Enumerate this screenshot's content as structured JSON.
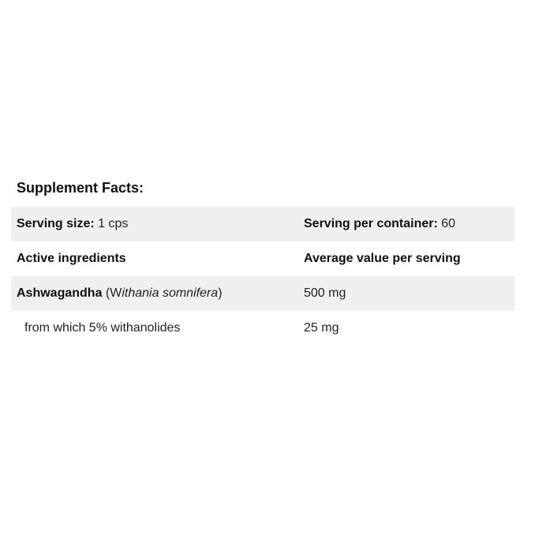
{
  "title": "Supplement Facts:",
  "serving": {
    "size_label": "Serving size:",
    "size_value": "1 cps",
    "container_label": "Serving per container:",
    "container_value": "60"
  },
  "header": {
    "col1": "Active ingredients",
    "col2": "Average value per serving"
  },
  "ingredients": [
    {
      "name": "Ashwagandha",
      "latin_open": "(W",
      "latin_italic": "ithania somnifera",
      "latin_close": ")",
      "amount": "500 mg"
    },
    {
      "name": "from which 5% withanolides",
      "amount": "25 mg"
    }
  ]
}
